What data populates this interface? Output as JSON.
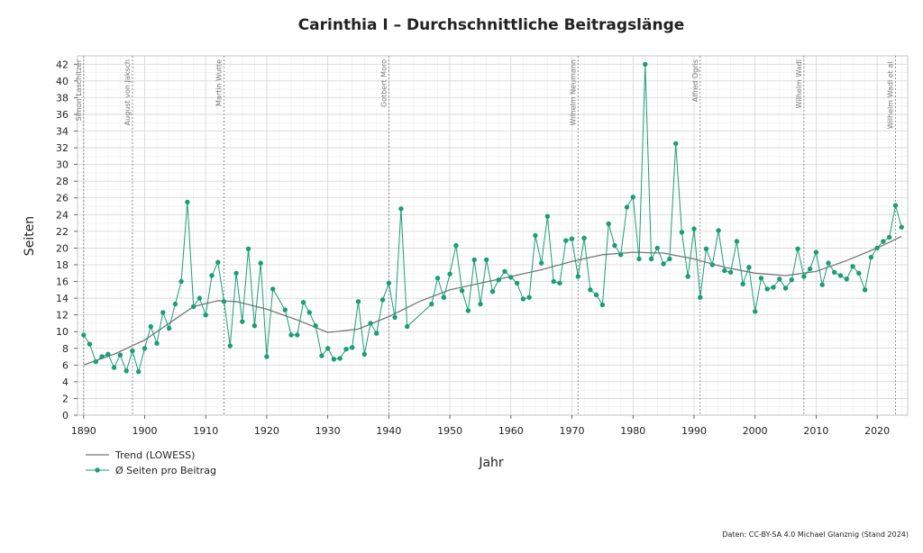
{
  "chart_data": {
    "type": "line",
    "title": "Carinthia I – Durchschnittliche Beitragslänge",
    "xlabel": "Jahr",
    "ylabel": "Seiten",
    "xlim": [
      1889,
      2025
    ],
    "ylim": [
      0,
      43
    ],
    "x_ticks": [
      1890,
      1900,
      1910,
      1920,
      1930,
      1940,
      1950,
      1960,
      1970,
      1980,
      1990,
      2000,
      2010,
      2020
    ],
    "y_ticks": [
      0,
      2,
      4,
      6,
      8,
      10,
      12,
      14,
      16,
      18,
      20,
      22,
      24,
      26,
      28,
      30,
      32,
      34,
      36,
      38,
      40,
      42
    ],
    "grid": true,
    "legend_position": "bottom-left",
    "series": [
      {
        "name": "Ø Seiten pro Beitrag",
        "color": "#1a9e77",
        "points": [
          [
            1890,
            9.6
          ],
          [
            1891,
            8.5
          ],
          [
            1892,
            6.4
          ],
          [
            1893,
            7.0
          ],
          [
            1894,
            7.3
          ],
          [
            1895,
            5.7
          ],
          [
            1896,
            7.2
          ],
          [
            1897,
            5.3
          ],
          [
            1898,
            7.7
          ],
          [
            1899,
            5.2
          ],
          [
            1900,
            8.0
          ],
          [
            1901,
            10.6
          ],
          [
            1902,
            8.6
          ],
          [
            1903,
            12.3
          ],
          [
            1904,
            10.4
          ],
          [
            1905,
            13.3
          ],
          [
            1906,
            16.0
          ],
          [
            1907,
            25.5
          ],
          [
            1908,
            13.0
          ],
          [
            1909,
            14.0
          ],
          [
            1910,
            12.0
          ],
          [
            1911,
            16.7
          ],
          [
            1912,
            18.3
          ],
          [
            1913,
            13.6
          ],
          [
            1914,
            8.3
          ],
          [
            1915,
            17.0
          ],
          [
            1916,
            11.2
          ],
          [
            1917,
            19.9
          ],
          [
            1918,
            10.7
          ],
          [
            1919,
            18.2
          ],
          [
            1920,
            7.0
          ],
          [
            1921,
            15.1
          ],
          [
            1923,
            12.6
          ],
          [
            1924,
            9.6
          ],
          [
            1925,
            9.6
          ],
          [
            1926,
            13.5
          ],
          [
            1927,
            12.3
          ],
          [
            1928,
            10.7
          ],
          [
            1929,
            7.1
          ],
          [
            1930,
            8.0
          ],
          [
            1931,
            6.7
          ],
          [
            1932,
            6.8
          ],
          [
            1933,
            7.9
          ],
          [
            1934,
            8.1
          ],
          [
            1935,
            13.6
          ],
          [
            1936,
            7.3
          ],
          [
            1937,
            11.0
          ],
          [
            1938,
            9.8
          ],
          [
            1939,
            13.8
          ],
          [
            1940,
            15.8
          ],
          [
            1941,
            11.7
          ],
          [
            1942,
            24.7
          ],
          [
            1943,
            10.6
          ],
          [
            1947,
            13.3
          ],
          [
            1948,
            16.4
          ],
          [
            1949,
            14.1
          ],
          [
            1950,
            16.9
          ],
          [
            1951,
            20.3
          ],
          [
            1952,
            14.9
          ],
          [
            1953,
            12.5
          ],
          [
            1954,
            18.6
          ],
          [
            1955,
            13.3
          ],
          [
            1956,
            18.6
          ],
          [
            1957,
            14.8
          ],
          [
            1958,
            16.2
          ],
          [
            1959,
            17.2
          ],
          [
            1960,
            16.5
          ],
          [
            1961,
            15.8
          ],
          [
            1962,
            13.9
          ],
          [
            1963,
            14.1
          ],
          [
            1964,
            21.5
          ],
          [
            1965,
            18.2
          ],
          [
            1966,
            23.8
          ],
          [
            1967,
            16.0
          ],
          [
            1968,
            15.8
          ],
          [
            1969,
            20.9
          ],
          [
            1970,
            21.1
          ],
          [
            1971,
            16.6
          ],
          [
            1972,
            21.2
          ],
          [
            1973,
            15.0
          ],
          [
            1974,
            14.4
          ],
          [
            1975,
            13.2
          ],
          [
            1976,
            22.9
          ],
          [
            1977,
            20.3
          ],
          [
            1978,
            19.2
          ],
          [
            1979,
            24.9
          ],
          [
            1980,
            26.1
          ],
          [
            1981,
            18.7
          ],
          [
            1982,
            42.0
          ],
          [
            1983,
            18.7
          ],
          [
            1984,
            20.0
          ],
          [
            1985,
            18.1
          ],
          [
            1986,
            18.7
          ],
          [
            1987,
            32.5
          ],
          [
            1988,
            21.9
          ],
          [
            1989,
            16.6
          ],
          [
            1990,
            22.3
          ],
          [
            1991,
            14.1
          ],
          [
            1992,
            19.9
          ],
          [
            1993,
            18.0
          ],
          [
            1994,
            22.1
          ],
          [
            1995,
            17.3
          ],
          [
            1996,
            17.1
          ],
          [
            1997,
            20.8
          ],
          [
            1998,
            15.7
          ],
          [
            1999,
            17.7
          ],
          [
            2000,
            12.4
          ],
          [
            2001,
            16.4
          ],
          [
            2002,
            15.1
          ],
          [
            2003,
            15.3
          ],
          [
            2004,
            16.3
          ],
          [
            2005,
            15.2
          ],
          [
            2006,
            16.2
          ],
          [
            2007,
            19.9
          ],
          [
            2008,
            16.6
          ],
          [
            2009,
            17.5
          ],
          [
            2010,
            19.5
          ],
          [
            2011,
            15.6
          ],
          [
            2012,
            18.2
          ],
          [
            2013,
            17.1
          ],
          [
            2014,
            16.7
          ],
          [
            2015,
            16.3
          ],
          [
            2016,
            17.8
          ],
          [
            2017,
            17.0
          ],
          [
            2018,
            15.0
          ],
          [
            2019,
            18.9
          ],
          [
            2020,
            20.0
          ],
          [
            2021,
            20.8
          ],
          [
            2022,
            21.3
          ],
          [
            2023,
            25.1
          ],
          [
            2024,
            22.5
          ]
        ]
      },
      {
        "name": "Trend (LOWESS)",
        "color": "#777777",
        "points": [
          [
            1890,
            6.0
          ],
          [
            1895,
            7.3
          ],
          [
            1900,
            9.0
          ],
          [
            1905,
            11.5
          ],
          [
            1908,
            13.0
          ],
          [
            1912,
            13.7
          ],
          [
            1915,
            13.6
          ],
          [
            1920,
            12.7
          ],
          [
            1925,
            11.4
          ],
          [
            1930,
            9.9
          ],
          [
            1935,
            10.3
          ],
          [
            1940,
            11.8
          ],
          [
            1945,
            13.6
          ],
          [
            1950,
            15.0
          ],
          [
            1955,
            15.8
          ],
          [
            1960,
            16.6
          ],
          [
            1965,
            17.4
          ],
          [
            1970,
            18.4
          ],
          [
            1975,
            19.2
          ],
          [
            1980,
            19.5
          ],
          [
            1985,
            19.4
          ],
          [
            1990,
            18.7
          ],
          [
            1995,
            17.7
          ],
          [
            2000,
            17.0
          ],
          [
            2005,
            16.7
          ],
          [
            2010,
            17.2
          ],
          [
            2015,
            18.5
          ],
          [
            2020,
            20.0
          ],
          [
            2024,
            21.4
          ]
        ]
      }
    ],
    "editors": [
      {
        "year": 1890,
        "name": "Simon Laschitzer"
      },
      {
        "year": 1898,
        "name": "August von Jaksch"
      },
      {
        "year": 1913,
        "name": "Martin Wutte"
      },
      {
        "year": 1940,
        "name": "Gotbert Moro"
      },
      {
        "year": 1971,
        "name": "Wilhelm Neumann"
      },
      {
        "year": 1991,
        "name": "Alfred Ogris"
      },
      {
        "year": 2008,
        "name": "Wilhelm Wadl"
      },
      {
        "year": 2023,
        "name": "Wilhelm Wadl et al."
      }
    ],
    "source_note": "Daten: CC-BY-SA 4.0 Michael Glanznig (Stand 2024)"
  }
}
